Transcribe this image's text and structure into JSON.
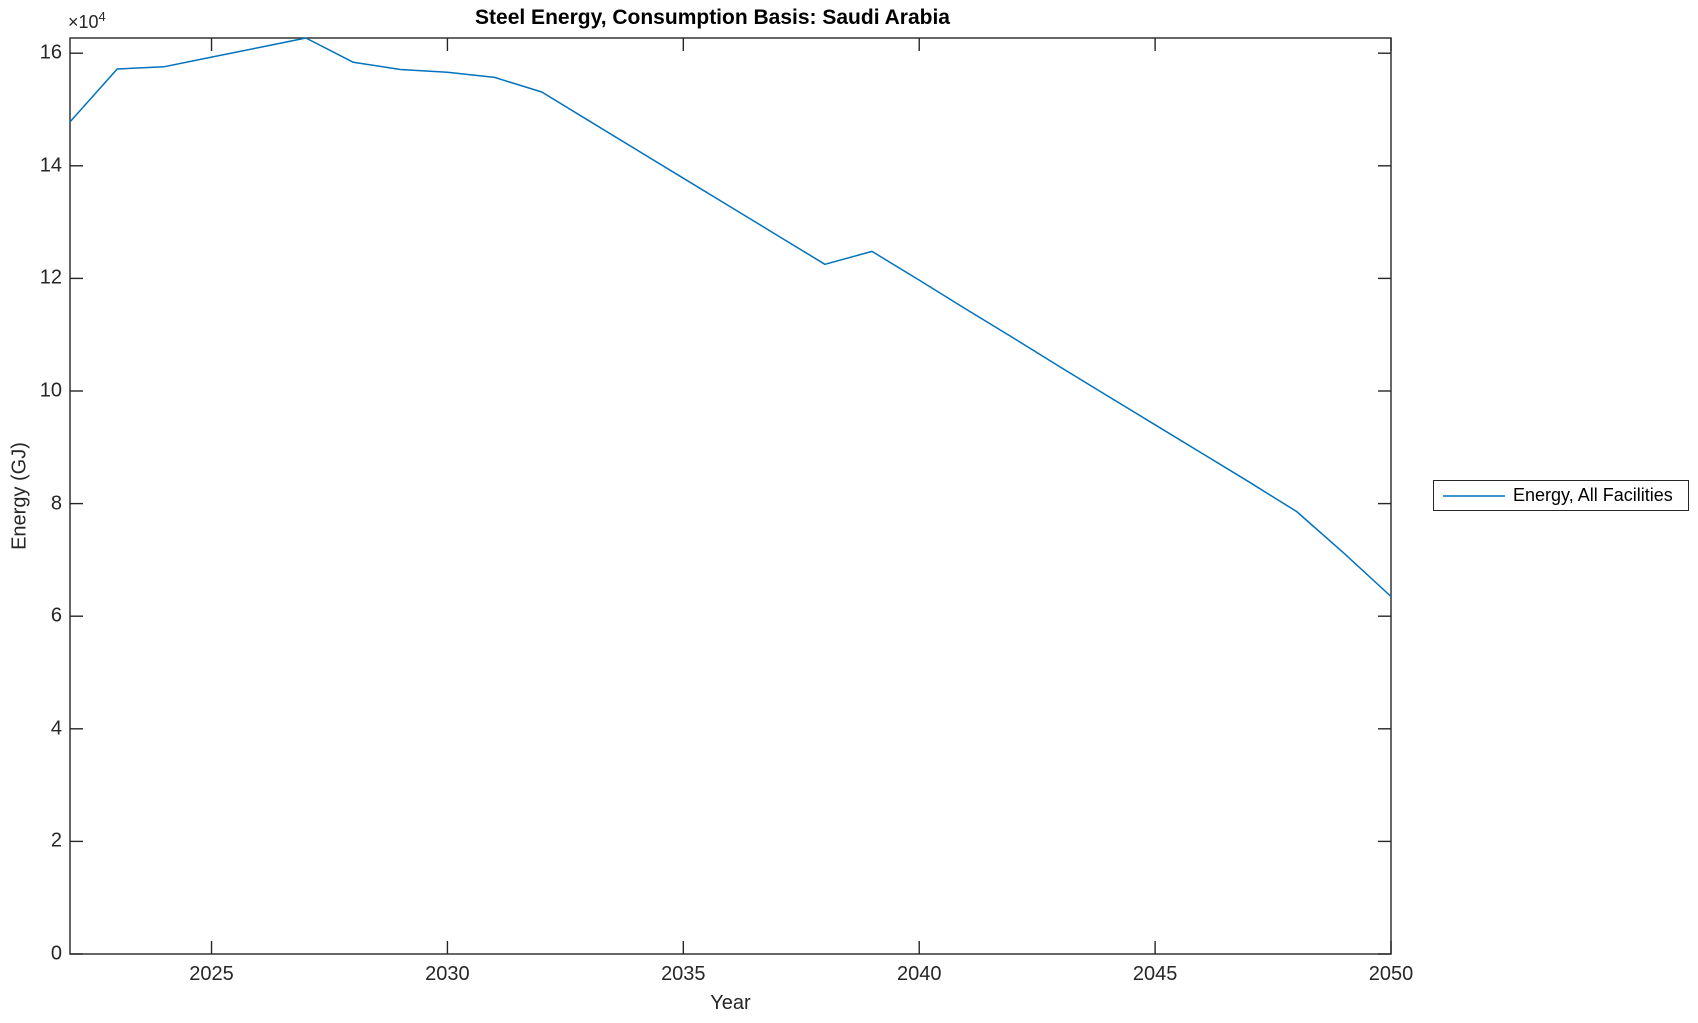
{
  "chart_data": {
    "type": "line",
    "title": "Steel Energy, Consumption Basis: Saudi Arabia",
    "xlabel": "Year",
    "ylabel": "Energy (GJ)",
    "y_axis_multiplier": {
      "base": "×10",
      "exponent": "4"
    },
    "xlim": [
      2022,
      2050
    ],
    "ylim": [
      0,
      162700
    ],
    "xticks": [
      {
        "value": 2025,
        "label": "2025"
      },
      {
        "value": 2030,
        "label": "2030"
      },
      {
        "value": 2035,
        "label": "2035"
      },
      {
        "value": 2040,
        "label": "2040"
      },
      {
        "value": 2045,
        "label": "2045"
      },
      {
        "value": 2050,
        "label": "2050"
      }
    ],
    "yticks": [
      {
        "value": 0,
        "label": "0"
      },
      {
        "value": 20000,
        "label": "2"
      },
      {
        "value": 40000,
        "label": "4"
      },
      {
        "value": 60000,
        "label": "6"
      },
      {
        "value": 80000,
        "label": "8"
      },
      {
        "value": 100000,
        "label": "10"
      },
      {
        "value": 120000,
        "label": "12"
      },
      {
        "value": 140000,
        "label": "14"
      },
      {
        "value": 160000,
        "label": "16"
      }
    ],
    "grid": false,
    "legend_position": "outside-right",
    "axis_color": "#262626",
    "series": [
      {
        "name": "Energy, All Facilities",
        "color": "#0072BD",
        "x": [
          2022,
          2023,
          2024,
          2025,
          2026,
          2027,
          2028,
          2029,
          2030,
          2031,
          2032,
          2033,
          2034,
          2035,
          2036,
          2037,
          2038,
          2039,
          2040,
          2041,
          2042,
          2043,
          2044,
          2045,
          2046,
          2047,
          2048,
          2049,
          2050
        ],
        "values": [
          147800,
          157200,
          157600,
          159300,
          161000,
          162700,
          158400,
          157100,
          156600,
          155700,
          153100,
          148000,
          142900,
          137800,
          132700,
          127600,
          122500,
          124800,
          119700,
          114500,
          109400,
          104200,
          99100,
          94000,
          88900,
          83800,
          78600,
          71200,
          63500
        ]
      }
    ]
  }
}
